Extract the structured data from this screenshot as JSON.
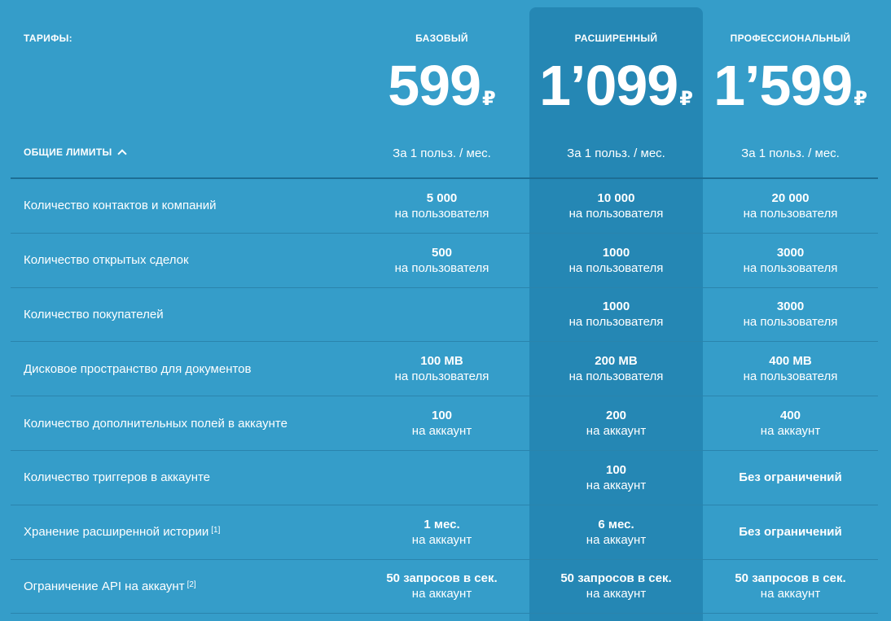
{
  "header": {
    "title": "ТАРИФЫ:",
    "limits_toggle": "ОБЩИЕ ЛИМИТЫ"
  },
  "plans": [
    {
      "name": "БАЗОВЫЙ",
      "price": "599",
      "currency": "₽",
      "period": "За 1 польз. / мес."
    },
    {
      "name": "РАСШИРЕННЫЙ",
      "price": "1’099",
      "currency": "₽",
      "period": "За 1 польз. / мес."
    },
    {
      "name": "ПРОФЕССИОНАЛЬНЫЙ",
      "price": "1’599",
      "currency": "₽",
      "period": "За 1 польз. / мес."
    }
  ],
  "rows": [
    {
      "label": "Количество контактов и компаний",
      "note": "",
      "cells": [
        {
          "value": "5 000",
          "unit": "на пользователя"
        },
        {
          "value": "10 000",
          "unit": "на пользователя"
        },
        {
          "value": "20 000",
          "unit": "на пользователя"
        }
      ]
    },
    {
      "label": "Количество открытых сделок",
      "note": "",
      "cells": [
        {
          "value": "500",
          "unit": "на пользователя"
        },
        {
          "value": "1000",
          "unit": "на пользователя"
        },
        {
          "value": "3000",
          "unit": "на пользователя"
        }
      ]
    },
    {
      "label": "Количество покупателей",
      "note": "",
      "cells": [
        {
          "value": "",
          "unit": ""
        },
        {
          "value": "1000",
          "unit": "на пользователя"
        },
        {
          "value": "3000",
          "unit": "на пользователя"
        }
      ]
    },
    {
      "label": "Дисковое пространство для документов",
      "note": "",
      "cells": [
        {
          "value": "100 MB",
          "unit": "на пользователя"
        },
        {
          "value": "200 MB",
          "unit": "на пользователя"
        },
        {
          "value": "400 MB",
          "unit": "на пользователя"
        }
      ]
    },
    {
      "label": "Количество дополнительных полей в аккаунте",
      "note": "",
      "cells": [
        {
          "value": "100",
          "unit": "на аккаунт"
        },
        {
          "value": "200",
          "unit": "на аккаунт"
        },
        {
          "value": "400",
          "unit": "на аккаунт"
        }
      ]
    },
    {
      "label": "Количество триггеров в аккаунте",
      "note": "",
      "cells": [
        {
          "value": "",
          "unit": ""
        },
        {
          "value": "100",
          "unit": "на аккаунт"
        },
        {
          "value": "Без ограничений",
          "unit": ""
        }
      ]
    },
    {
      "label": "Хранение расширенной истории",
      "note": "[1]",
      "cells": [
        {
          "value": "1 мес.",
          "unit": "на аккаунт"
        },
        {
          "value": "6 мес.",
          "unit": "на аккаунт"
        },
        {
          "value": "Без ограничений",
          "unit": ""
        }
      ]
    },
    {
      "label": "Ограничение API на аккаунт",
      "note": "[2]",
      "cells": [
        {
          "value": "50 запросов в сек.",
          "unit": "на аккаунт"
        },
        {
          "value": "50 запросов в сек.",
          "unit": "на аккаунт"
        },
        {
          "value": "50 запросов в сек.",
          "unit": "на аккаунт"
        }
      ]
    }
  ]
}
